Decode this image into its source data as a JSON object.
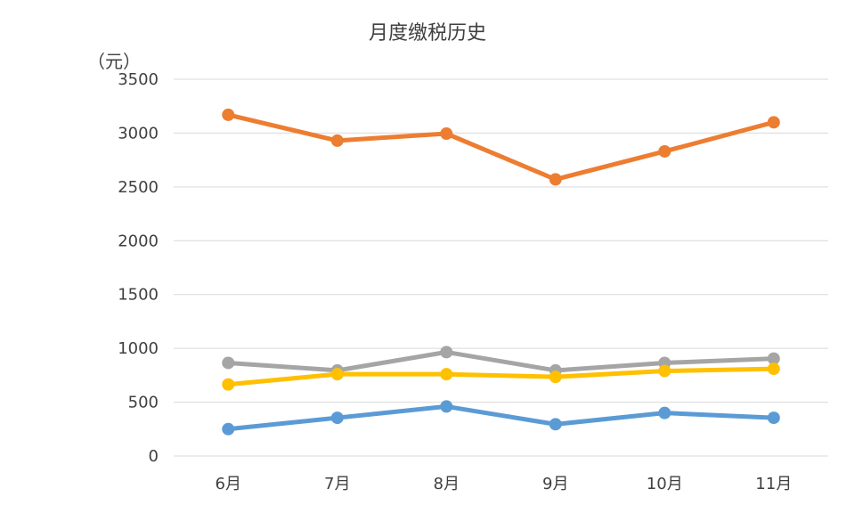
{
  "chart_data": {
    "type": "line",
    "title": "月度缴税历史",
    "ylabel": "（元）",
    "xlabel": "",
    "categories": [
      "6月",
      "7月",
      "8月",
      "9月",
      "10月",
      "11月"
    ],
    "ylim": [
      0,
      3500
    ],
    "yticks": [
      0,
      500,
      1000,
      1500,
      2000,
      2500,
      3000,
      3500
    ],
    "grid": true,
    "legend": "none",
    "series": [
      {
        "color": "#ED7D31",
        "values": [
          3170,
          2930,
          2995,
          2570,
          2830,
          3100
        ]
      },
      {
        "color": "#A5A5A5",
        "values": [
          865,
          795,
          965,
          795,
          865,
          905
        ]
      },
      {
        "color": "#FFC000",
        "values": [
          665,
          760,
          760,
          735,
          790,
          810
        ]
      },
      {
        "color": "#5B9BD5",
        "values": [
          250,
          355,
          460,
          295,
          400,
          355
        ]
      }
    ]
  }
}
